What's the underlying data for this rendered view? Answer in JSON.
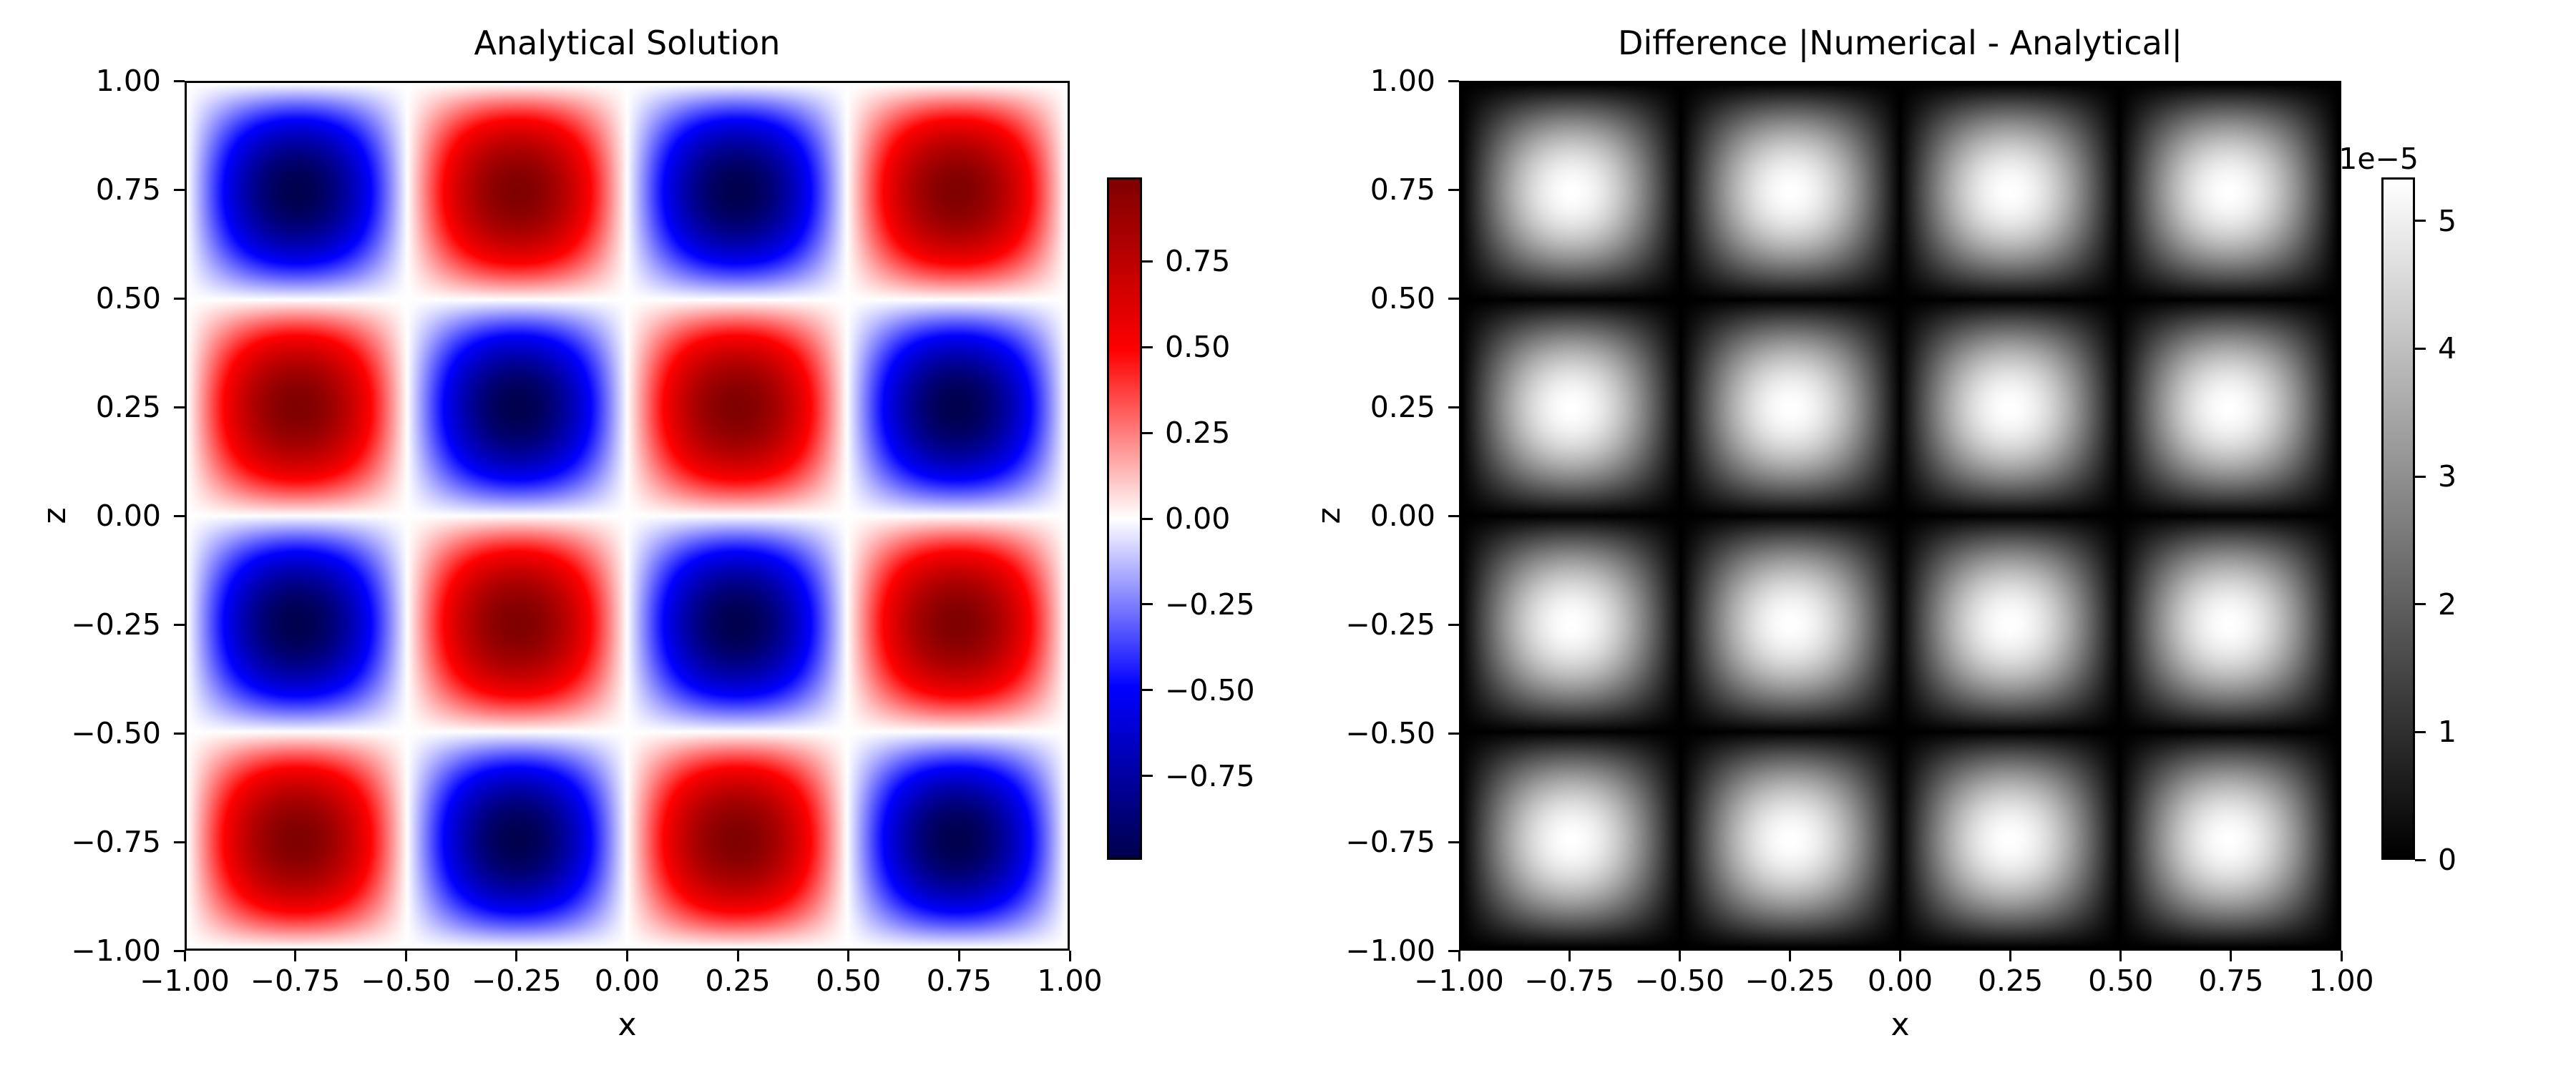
{
  "chart_data": [
    {
      "type": "heatmap",
      "title": "Analytical Solution",
      "xlabel": "x",
      "ylabel": "z",
      "x_range": [
        -1,
        1
      ],
      "y_range": [
        -1,
        1
      ],
      "field_formula": "sin(2*pi*x) * sin(2*pi*z)",
      "abs": false,
      "amplitude": 0.994,
      "vmin": -0.994,
      "vmax": 0.994,
      "colormap": "seismic",
      "colormap_stops": [
        [
          0.0,
          [
            0,
            0,
            77
          ]
        ],
        [
          0.25,
          [
            0,
            0,
            255
          ]
        ],
        [
          0.5,
          [
            255,
            255,
            255
          ]
        ],
        [
          0.75,
          [
            255,
            0,
            0
          ]
        ],
        [
          1.0,
          [
            128,
            0,
            0
          ]
        ]
      ],
      "grid": false,
      "x_tick_values": [
        -1,
        -0.75,
        -0.5,
        -0.25,
        0,
        0.25,
        0.5,
        0.75,
        1
      ],
      "x_tick_labels": [
        "−1.00",
        "−0.75",
        "−0.50",
        "−0.25",
        "0.00",
        "0.25",
        "0.50",
        "0.75",
        "1.00"
      ],
      "y_tick_values": [
        1,
        0.75,
        0.5,
        0.25,
        0,
        -0.25,
        -0.5,
        -0.75,
        -1
      ],
      "y_tick_labels": [
        "1.00",
        "0.75",
        "0.50",
        "0.25",
        "0.00",
        "−0.25",
        "−0.50",
        "−0.75",
        "−1.00"
      ],
      "colorbar": {
        "position": "right",
        "vmin": -0.994,
        "vmax": 0.994,
        "tick_values": [
          0.75,
          0.5,
          0.25,
          0,
          -0.25,
          -0.5,
          -0.75
        ],
        "tick_labels": [
          "0.75",
          "0.50",
          "0.25",
          "0.00",
          "−0.25",
          "−0.50",
          "−0.75"
        ],
        "offset_label": ""
      }
    },
    {
      "type": "heatmap",
      "title": "Difference |Numerical - Analytical|",
      "xlabel": "x",
      "ylabel": "z",
      "x_range": [
        -1,
        1
      ],
      "y_range": [
        -1,
        1
      ],
      "field_formula": "|numerical - analytical| = |sin(2*pi*x) * sin(2*pi*z)| * 5.34e-5",
      "abs": true,
      "amplitude": 5.34,
      "vmin": 0,
      "vmax": 5.34,
      "value_unit_scale": "1e−5",
      "colormap": "gray",
      "colormap_stops": [
        [
          0.0,
          [
            0,
            0,
            0
          ]
        ],
        [
          1.0,
          [
            255,
            255,
            255
          ]
        ]
      ],
      "grid": false,
      "x_tick_values": [
        -1,
        -0.75,
        -0.5,
        -0.25,
        0,
        0.25,
        0.5,
        0.75,
        1
      ],
      "x_tick_labels": [
        "−1.00",
        "−0.75",
        "−0.50",
        "−0.25",
        "0.00",
        "0.25",
        "0.50",
        "0.75",
        "1.00"
      ],
      "y_tick_values": [
        1,
        0.75,
        0.5,
        0.25,
        0,
        -0.25,
        -0.5,
        -0.75,
        -1
      ],
      "y_tick_labels": [
        "1.00",
        "0.75",
        "0.50",
        "0.25",
        "0.00",
        "−0.25",
        "−0.50",
        "−0.75",
        "−1.00"
      ],
      "colorbar": {
        "position": "right",
        "vmin": 0,
        "vmax": 5.34,
        "tick_values": [
          5,
          4,
          3,
          2,
          1,
          0
        ],
        "tick_labels": [
          "5",
          "4",
          "3",
          "2",
          "1",
          "0"
        ],
        "offset_label": "1e−5"
      }
    }
  ]
}
